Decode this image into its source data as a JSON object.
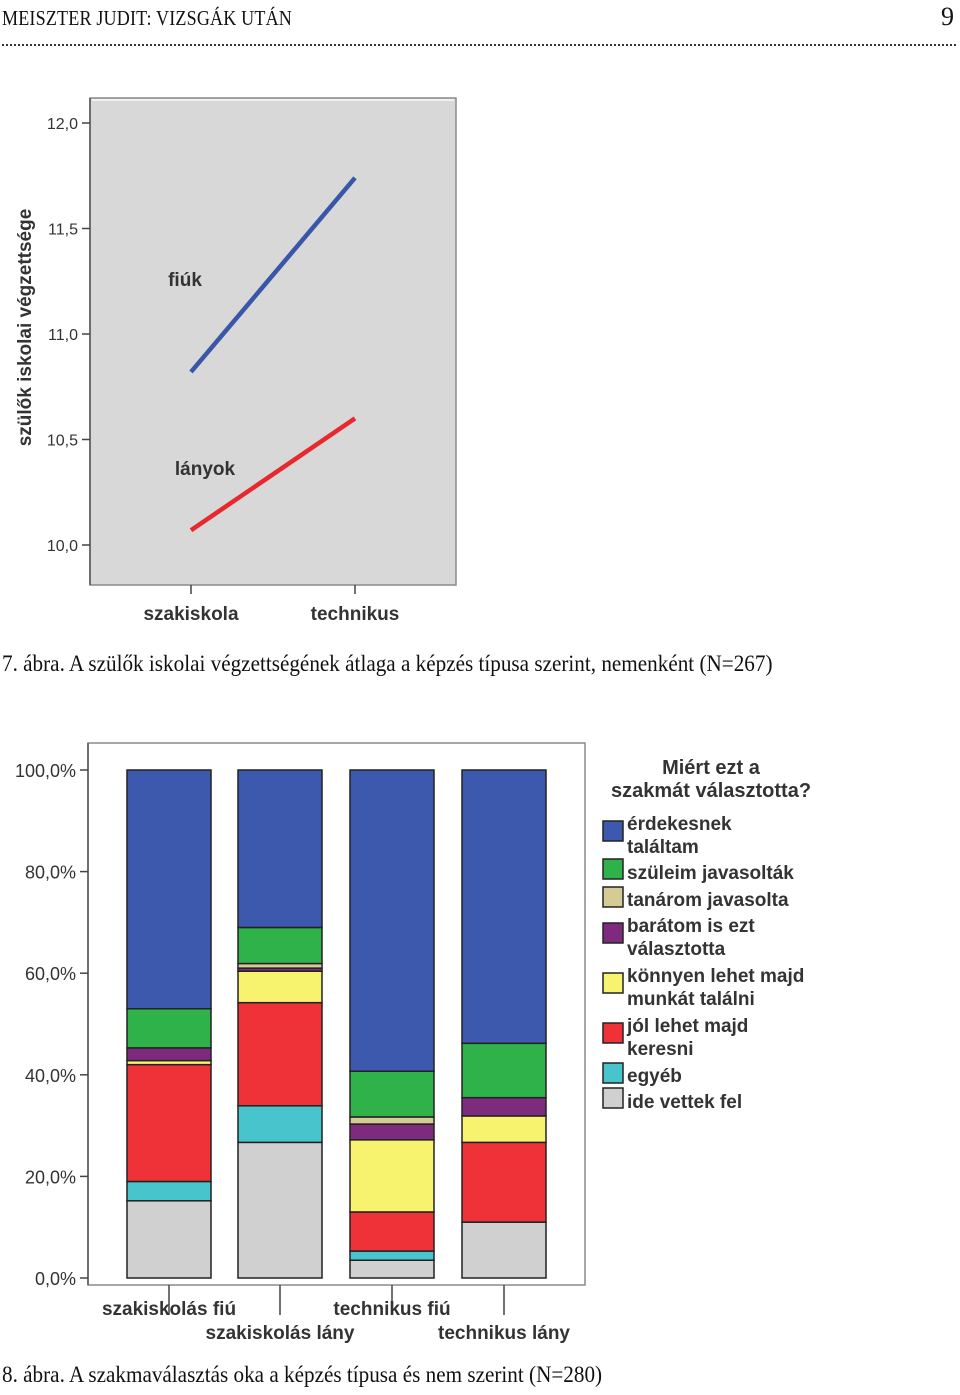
{
  "header": {
    "left": "MEISZTER JUDIT: VIZSGÁK UTÁN",
    "page_number": "9"
  },
  "captions": {
    "fig7": "7. ábra. A szülők iskolai végzettségének átlaga a képzés típusa szerint, nemenként (N=267)",
    "fig8": "8. ábra. A szakmaválasztás oka a képzés típusa és nem szerint (N=280)"
  },
  "chart_data": [
    {
      "type": "line",
      "ylabel": "szülők iskolai végzettsége",
      "xlabel": "",
      "categories": [
        "szakiskola",
        "technikus"
      ],
      "yticks": [
        "10,0",
        "10,5",
        "11,0",
        "11,5",
        "12,0"
      ],
      "ylim": [
        10.0,
        12.0
      ],
      "series": [
        {
          "name": "fiúk",
          "values": [
            10.82,
            11.74
          ],
          "color": "#3a56a8"
        },
        {
          "name": "lányok",
          "values": [
            10.07,
            10.6
          ],
          "color": "#e8282f"
        }
      ],
      "plot_background": "#d8d8d8",
      "grid": false
    },
    {
      "type": "bar",
      "stacked": true,
      "categories": [
        "szakiskolás fiú",
        "szakiskolás lány",
        "technikus fiú",
        "technikus lány"
      ],
      "yticks": [
        "0,0%",
        "20,0%",
        "40,0%",
        "60,0%",
        "80,0%",
        "100,0%"
      ],
      "ylim": [
        0,
        100
      ],
      "legend_title": "Miért ezt a szakmát választotta?",
      "legend_placement": "right",
      "series": [
        {
          "name": "ide vettek fel",
          "color": "#d0d0d0",
          "values": [
            15.2,
            26.7,
            3.5,
            11.0
          ]
        },
        {
          "name": "egyéb",
          "color": "#48c4cc",
          "values": [
            3.8,
            7.2,
            1.8,
            0
          ]
        },
        {
          "name": "jól lehet majd keresni",
          "color": "#ee3237",
          "values": [
            23.0,
            20.3,
            7.7,
            15.7
          ]
        },
        {
          "name": "könnyen lehet majd munkát találni",
          "color": "#f8f36f",
          "values": [
            0.8,
            6.2,
            14.2,
            5.2
          ]
        },
        {
          "name": "barátom is ezt választotta",
          "color": "#7e2a7e",
          "values": [
            2.5,
            0.6,
            3.1,
            3.6
          ]
        },
        {
          "name": "tanárom javasolta",
          "color": "#d4cb95",
          "values": [
            0,
            0.9,
            1.4,
            0
          ]
        },
        {
          "name": "szüleim javasolták",
          "color": "#2fb24a",
          "values": [
            7.7,
            7.1,
            9.0,
            10.7
          ]
        },
        {
          "name": "érdekesnek találtam",
          "color": "#3d59ae",
          "values": [
            47.0,
            31.0,
            59.3,
            53.8
          ]
        }
      ],
      "legend_order": [
        "érdekesnek találtam",
        "szüleim javasolták",
        "tanárom javasolta",
        "barátom is ezt választotta",
        "könnyen lehet majd munkát találni",
        "jól lehet majd keresni",
        "egyéb",
        "ide vettek fel"
      ],
      "legend_labels": {
        "érdekesnek találtam": [
          "érdekesnek",
          "találtam"
        ],
        "szüleim javasolták": [
          "szüleim javasolták"
        ],
        "tanárom javasolta": [
          "tanárom javasolta"
        ],
        "barátom is ezt választotta": [
          "barátom is ezt",
          "választotta"
        ],
        "könnyen lehet majd munkát találni": [
          "könnyen lehet majd",
          "munkát találni"
        ],
        "jól lehet majd keresni": [
          "jól lehet majd",
          "keresni"
        ],
        "egyéb": [
          "egyéb"
        ],
        "ide vettek fel": [
          "ide vettek fel"
        ]
      },
      "plot_background": "#ffffff",
      "grid": false
    }
  ]
}
